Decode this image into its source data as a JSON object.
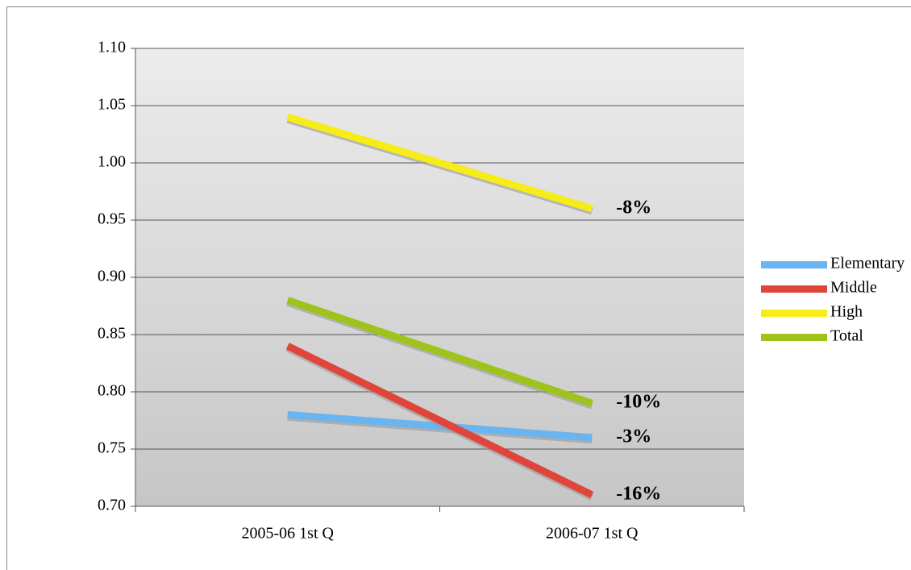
{
  "chart_data": {
    "type": "line",
    "categories": [
      "2005-06 1st Q",
      "2006-07 1st Q"
    ],
    "series": [
      {
        "name": "Elementary",
        "color": "#6ab4f0",
        "values": [
          0.78,
          0.76
        ],
        "change_label": "-3%"
      },
      {
        "name": "Middle",
        "color": "#e0453c",
        "values": [
          0.84,
          0.71
        ],
        "change_label": "-16%"
      },
      {
        "name": "High",
        "color": "#f6ec18",
        "values": [
          1.04,
          0.96
        ],
        "change_label": "-8%"
      },
      {
        "name": "Total",
        "color": "#9ec31a",
        "values": [
          0.88,
          0.79
        ],
        "change_label": "-10%"
      }
    ],
    "ylim": [
      0.7,
      1.1
    ],
    "yticks": [
      {
        "value": 0.7,
        "label": "0.70"
      },
      0.75,
      {
        "value": 0.8,
        "label": "0.80"
      },
      0.85,
      {
        "value": 0.9,
        "label": "0.90"
      },
      0.95,
      {
        "value": 1.0,
        "label": "1.00"
      },
      1.05,
      {
        "value": 1.1,
        "label": "1.10"
      }
    ],
    "grid": true,
    "legend": "right"
  }
}
